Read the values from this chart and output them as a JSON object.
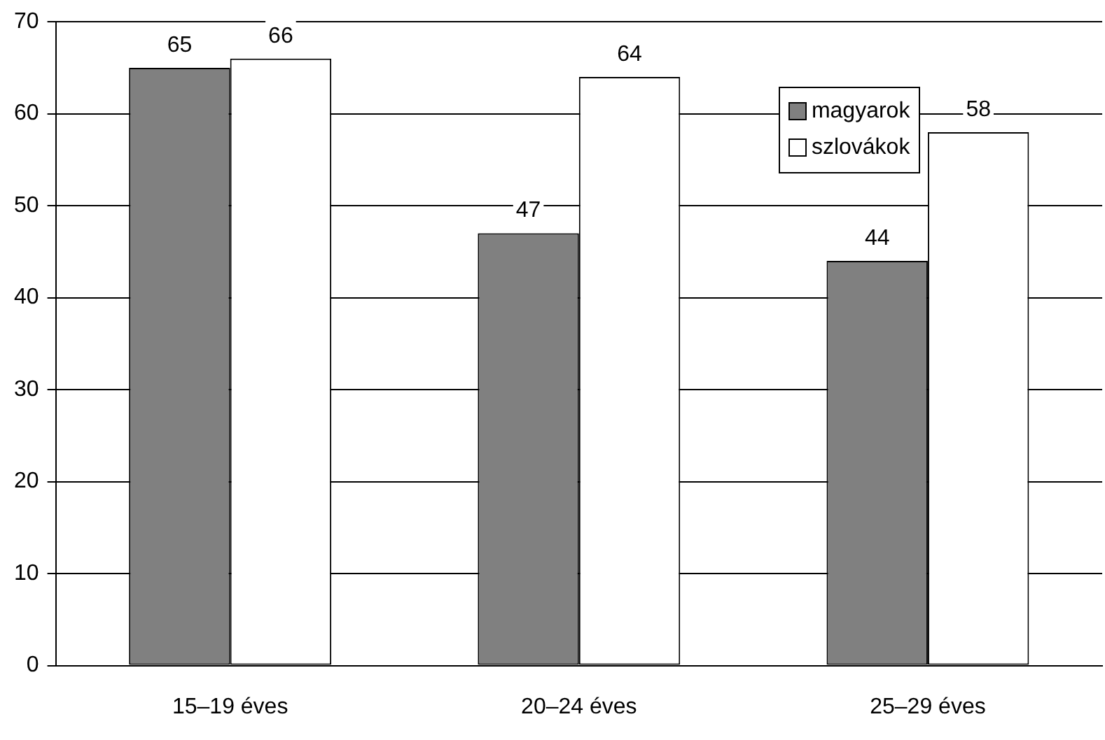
{
  "chart_data": {
    "type": "bar",
    "categories": [
      "15–19 éves",
      "20–24 éves",
      "25–29 éves"
    ],
    "series": [
      {
        "name": "magyarok",
        "color": "#808080",
        "values": [
          65,
          47,
          44
        ]
      },
      {
        "name": "szlovákok",
        "color": "#ffffff",
        "values": [
          66,
          64,
          58
        ]
      }
    ],
    "ylim": [
      0,
      70
    ],
    "yticks": [
      0,
      10,
      20,
      30,
      40,
      50,
      60,
      70
    ],
    "grid": "y",
    "legend": "top right",
    "data_labels": true
  }
}
